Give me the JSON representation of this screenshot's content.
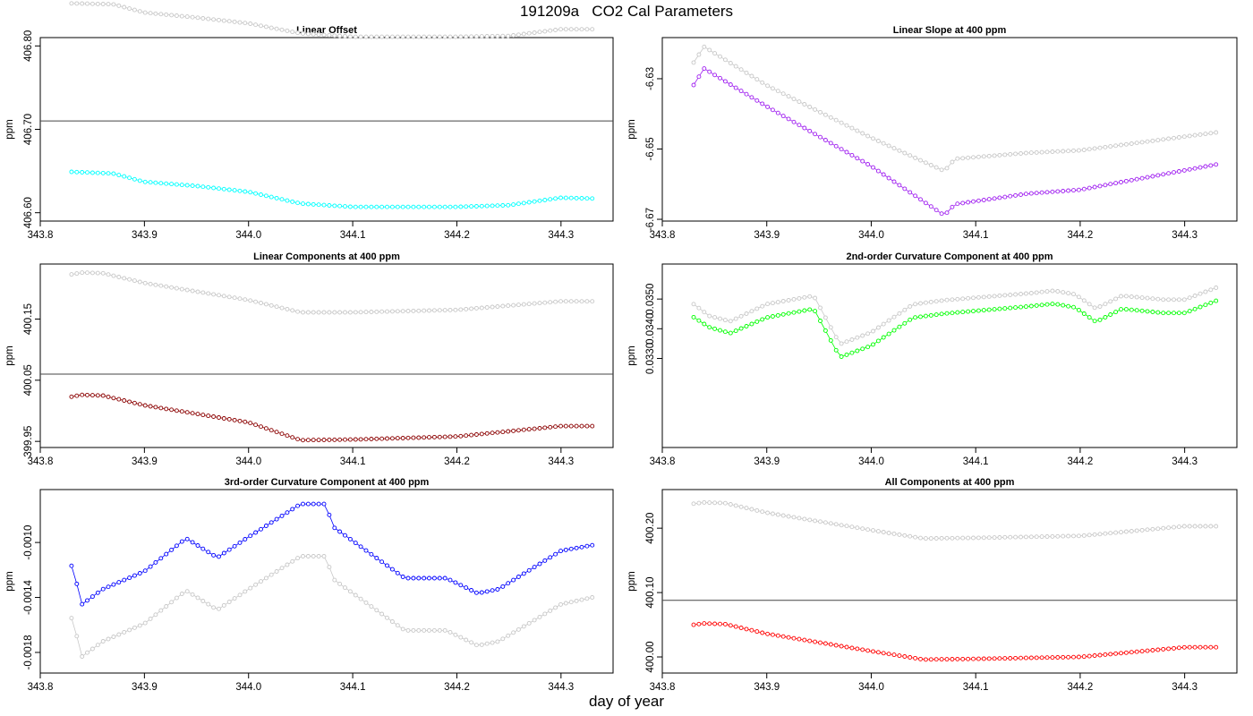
{
  "title": "191209a   CO2 Cal Parameters",
  "xlabel": "day of year",
  "chart_data": [
    {
      "type": "scatter",
      "title": "Linear Offset",
      "ylabel": "ppm",
      "xlim": [
        343.8,
        344.35
      ],
      "ylim": [
        406.59,
        406.81
      ],
      "xticks": [
        "343.8",
        "343.9",
        "344.0",
        "344.1",
        "344.2",
        "344.3"
      ],
      "yticks": [
        "406.60",
        "406.70",
        "406.80"
      ],
      "hline": 406.71,
      "grey_knots": [
        [
          343.83,
          406.851
        ],
        [
          343.87,
          406.85
        ],
        [
          343.9,
          406.84
        ],
        [
          343.95,
          406.834
        ],
        [
          344.0,
          406.827
        ],
        [
          344.05,
          406.815
        ],
        [
          344.1,
          406.811
        ],
        [
          344.15,
          406.811
        ],
        [
          344.2,
          406.811
        ],
        [
          344.25,
          406.812
        ],
        [
          344.3,
          406.82
        ],
        [
          344.33,
          406.82
        ]
      ],
      "series": [
        {
          "color": "#00ffff",
          "knots": [
            [
              343.83,
              406.649
            ],
            [
              343.87,
              406.647
            ],
            [
              343.9,
              406.637
            ],
            [
              343.95,
              406.632
            ],
            [
              344.0,
              406.625
            ],
            [
              344.05,
              406.611
            ],
            [
              344.1,
              406.607
            ],
            [
              344.15,
              406.607
            ],
            [
              344.2,
              406.607
            ],
            [
              344.25,
              406.609
            ],
            [
              344.3,
              406.618
            ],
            [
              344.33,
              406.617
            ]
          ]
        }
      ]
    },
    {
      "type": "scatter",
      "title": "Linear Slope at 400 ppm",
      "ylabel": "ppm",
      "xlim": [
        343.8,
        344.35
      ],
      "ylim": [
        -6.6705,
        -6.6183
      ],
      "xticks": [
        "343.8",
        "343.9",
        "344.0",
        "344.1",
        "344.2",
        "344.3"
      ],
      "yticks": [
        "-6.67",
        "-6.65",
        "-6.63"
      ],
      "grey_knots": [
        [
          343.83,
          -6.6254
        ],
        [
          343.84,
          -6.6209
        ],
        [
          343.9,
          -6.6319
        ],
        [
          344.0,
          -6.6468
        ],
        [
          344.07,
          -6.6563
        ],
        [
          344.08,
          -6.6528
        ],
        [
          344.15,
          -6.6511
        ],
        [
          344.2,
          -6.6504
        ],
        [
          344.33,
          -6.6453
        ]
      ],
      "series": [
        {
          "color": "#a020f0",
          "knots": [
            [
              343.83,
              -6.6318
            ],
            [
              343.84,
              -6.6271
            ],
            [
              343.9,
              -6.6379
            ],
            [
              344.0,
              -6.6549
            ],
            [
              344.07,
              -6.6689
            ],
            [
              344.08,
              -6.6657
            ],
            [
              344.15,
              -6.6627
            ],
            [
              344.2,
              -6.6616
            ],
            [
              344.33,
              -6.6544
            ]
          ]
        }
      ]
    },
    {
      "type": "scatter",
      "title": "Linear Components at 400 ppm",
      "ylabel": "ppm",
      "xlim": [
        343.8,
        344.35
      ],
      "ylim": [
        399.94,
        400.24
      ],
      "xticks": [
        "343.8",
        "343.9",
        "344.0",
        "344.1",
        "344.2",
        "344.3"
      ],
      "yticks": [
        "399.95",
        "400.05",
        "400.15"
      ],
      "hline": 400.06,
      "grey_knots": [
        [
          343.83,
          400.223
        ],
        [
          343.84,
          400.226
        ],
        [
          343.86,
          400.225
        ],
        [
          343.9,
          400.209
        ],
        [
          344.0,
          400.181
        ],
        [
          344.05,
          400.161
        ],
        [
          344.1,
          400.161
        ],
        [
          344.2,
          400.165
        ],
        [
          344.3,
          400.179
        ],
        [
          344.33,
          400.179
        ]
      ],
      "series": [
        {
          "color": "#8b0000",
          "knots": [
            [
              343.83,
              400.023
            ],
            [
              343.84,
              400.026
            ],
            [
              343.86,
              400.025
            ],
            [
              343.9,
              400.009
            ],
            [
              344.0,
              399.981
            ],
            [
              344.05,
              399.952
            ],
            [
              344.1,
              399.953
            ],
            [
              344.2,
              399.958
            ],
            [
              344.3,
              399.975
            ],
            [
              344.33,
              399.975
            ]
          ]
        }
      ]
    },
    {
      "type": "scatter",
      "title": "2nd-order Curvature Component at 400 ppm",
      "ylabel": "ppm",
      "xlim": [
        343.8,
        344.35
      ],
      "ylim": [
        0.03,
        0.03618
      ],
      "xticks": [
        "343.8",
        "343.9",
        "344.0",
        "344.1",
        "344.2",
        "344.3"
      ],
      "yticks": [
        "0.0330",
        "0.0340",
        "0.0350"
      ],
      "grey_knots": [
        [
          343.83,
          0.03483
        ],
        [
          343.845,
          0.03443
        ],
        [
          343.865,
          0.03425
        ],
        [
          343.9,
          0.03483
        ],
        [
          343.945,
          0.03511
        ],
        [
          343.97,
          0.03348
        ],
        [
          344.0,
          0.03388
        ],
        [
          344.04,
          0.03482
        ],
        [
          344.07,
          0.03496
        ],
        [
          344.15,
          0.03519
        ],
        [
          344.175,
          0.03528
        ],
        [
          344.195,
          0.03516
        ],
        [
          344.215,
          0.03468
        ],
        [
          344.24,
          0.03511
        ],
        [
          344.28,
          0.03498
        ],
        [
          344.3,
          0.03498
        ],
        [
          344.33,
          0.03538
        ]
      ],
      "series": [
        {
          "color": "#00ff00",
          "knots": [
            [
              343.83,
              0.03439
            ],
            [
              343.845,
              0.03405
            ],
            [
              343.865,
              0.03385
            ],
            [
              343.9,
              0.03438
            ],
            [
              343.945,
              0.03467
            ],
            [
              343.97,
              0.03304
            ],
            [
              344.0,
              0.03343
            ],
            [
              344.04,
              0.03437
            ],
            [
              344.07,
              0.03451
            ],
            [
              344.15,
              0.03475
            ],
            [
              344.175,
              0.03484
            ],
            [
              344.195,
              0.03472
            ],
            [
              344.215,
              0.03423
            ],
            [
              344.24,
              0.03467
            ],
            [
              344.28,
              0.03453
            ],
            [
              344.3,
              0.03453
            ],
            [
              344.33,
              0.03494
            ]
          ]
        }
      ]
    },
    {
      "type": "scatter",
      "title": "3rd-order Curvature Component at 400 ppm",
      "ylabel": "ppm",
      "xlim": [
        343.8,
        344.35
      ],
      "ylim": [
        -0.00195,
        -0.000615
      ],
      "xticks": [
        "343.8",
        "343.9",
        "344.0",
        "344.1",
        "344.2",
        "344.3"
      ],
      "yticks": [
        "-0.0018",
        "-0.0014",
        "-0.0010"
      ],
      "grey_knots": [
        [
          343.83,
          -0.00155
        ],
        [
          343.835,
          -0.00168
        ],
        [
          343.84,
          -0.00183
        ],
        [
          343.86,
          -0.00172
        ],
        [
          343.9,
          -0.00159
        ],
        [
          343.94,
          -0.00135
        ],
        [
          343.97,
          -0.00149
        ],
        [
          344.0,
          -0.00134
        ],
        [
          344.05,
          -0.0011
        ],
        [
          344.075,
          -0.0011
        ],
        [
          344.08,
          -0.00126
        ],
        [
          344.15,
          -0.00164
        ],
        [
          344.19,
          -0.00164
        ],
        [
          344.22,
          -0.00175
        ],
        [
          344.24,
          -0.00172
        ],
        [
          344.3,
          -0.00145
        ],
        [
          344.33,
          -0.0014
        ]
      ],
      "series": [
        {
          "color": "#0000ff",
          "knots": [
            [
              343.83,
              -0.00117
            ],
            [
              343.835,
              -0.0013
            ],
            [
              343.84,
              -0.00145
            ],
            [
              343.86,
              -0.00134
            ],
            [
              343.9,
              -0.00121
            ],
            [
              343.94,
              -0.00097
            ],
            [
              343.97,
              -0.00111
            ],
            [
              344.0,
              -0.00096
            ],
            [
              344.05,
              -0.00072
            ],
            [
              344.075,
              -0.00072
            ],
            [
              344.08,
              -0.00088
            ],
            [
              344.15,
              -0.00126
            ],
            [
              344.19,
              -0.00126
            ],
            [
              344.22,
              -0.00137
            ],
            [
              344.24,
              -0.00134
            ],
            [
              344.3,
              -0.00106
            ],
            [
              344.33,
              -0.00102
            ]
          ]
        }
      ]
    },
    {
      "type": "scatter",
      "title": "All Components at 400 ppm",
      "ylabel": "ppm",
      "xlim": [
        343.8,
        344.35
      ],
      "ylim": [
        399.975,
        400.26
      ],
      "xticks": [
        "343.8",
        "343.9",
        "344.0",
        "344.1",
        "344.2",
        "344.3"
      ],
      "yticks": [
        "400.00",
        "400.10",
        "400.20"
      ],
      "hline": 400.088,
      "grey_knots": [
        [
          343.83,
          400.238
        ],
        [
          343.84,
          400.24
        ],
        [
          343.86,
          400.239
        ],
        [
          343.9,
          400.224
        ],
        [
          344.0,
          400.197
        ],
        [
          344.05,
          400.184
        ],
        [
          344.1,
          400.185
        ],
        [
          344.2,
          400.188
        ],
        [
          344.3,
          400.203
        ],
        [
          344.33,
          400.203
        ]
      ],
      "series": [
        {
          "color": "#ff0000",
          "knots": [
            [
              343.83,
              400.05
            ],
            [
              343.84,
              400.052
            ],
            [
              343.86,
              400.051
            ],
            [
              343.9,
              400.036
            ],
            [
              344.0,
              400.009
            ],
            [
              344.05,
              399.996
            ],
            [
              344.1,
              399.997
            ],
            [
              344.2,
              400.0
            ],
            [
              344.3,
              400.015
            ],
            [
              344.33,
              400.015
            ]
          ]
        }
      ]
    }
  ]
}
